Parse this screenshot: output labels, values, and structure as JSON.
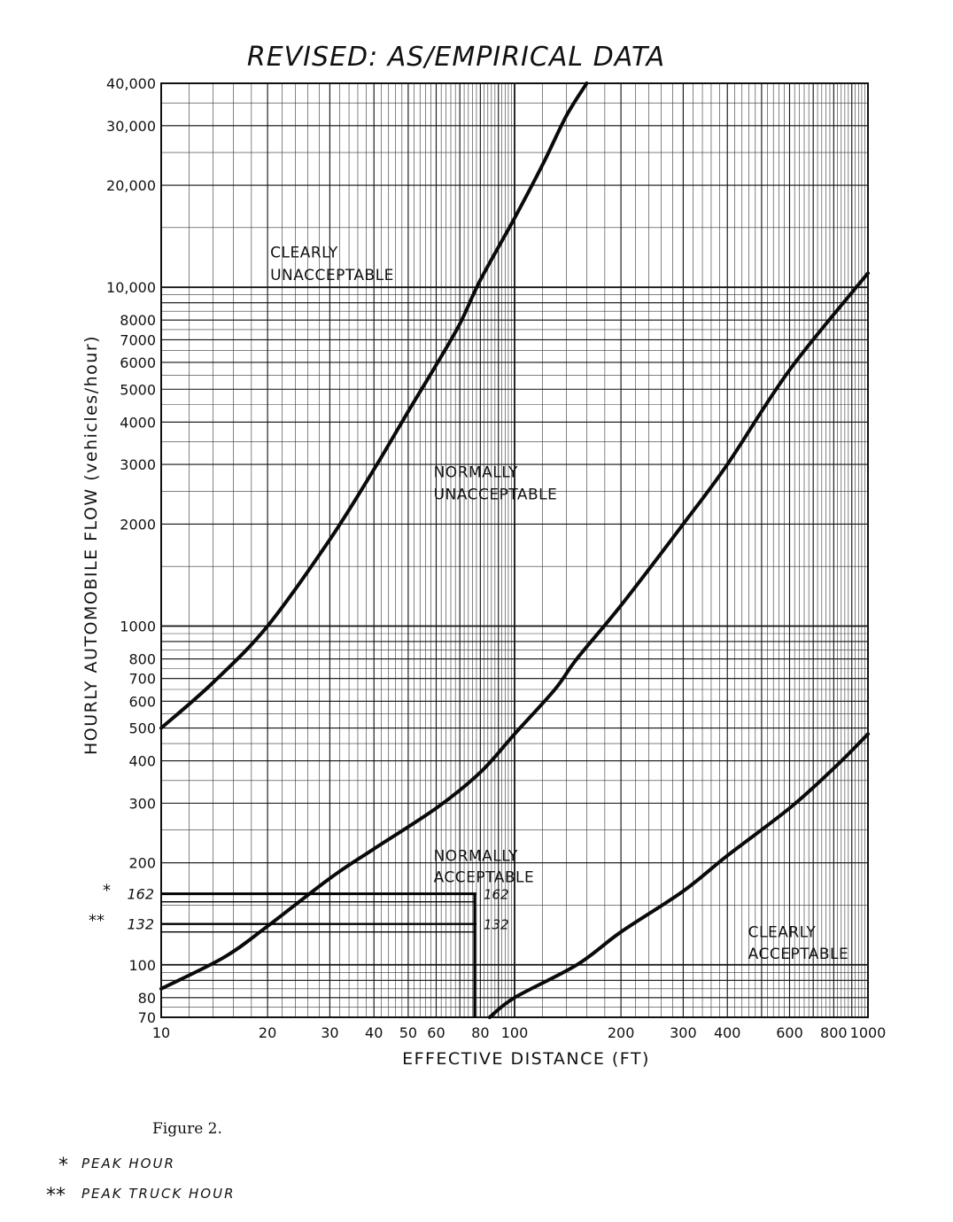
{
  "annotation_title": "REVISED: AS/EMPIRICAL DATA",
  "figure_caption": "Figure 2.",
  "footnotes": [
    {
      "marker": "*",
      "text": "PEAK HOUR"
    },
    {
      "marker": "**",
      "text": "PEAK TRUCK HOUR"
    }
  ],
  "chart_data": {
    "type": "line",
    "xscale": "log",
    "yscale": "log",
    "xlabel": "EFFECTIVE DISTANCE (FT)",
    "ylabel": "HOURLY AUTOMOBILE FLOW (vehicles/hour)",
    "xlim": [
      10,
      1000
    ],
    "ylim": [
      70,
      40000
    ],
    "grid": true,
    "x_ticks": [
      {
        "value": 10,
        "label": "10"
      },
      {
        "value": 20,
        "label": "20"
      },
      {
        "value": 30,
        "label": "30"
      },
      {
        "value": 40,
        "label": "40"
      },
      {
        "value": 50,
        "label": "50"
      },
      {
        "value": 60,
        "label": "60"
      },
      {
        "value": 80,
        "label": "80"
      },
      {
        "value": 100,
        "label": "100"
      },
      {
        "value": 200,
        "label": "200"
      },
      {
        "value": 300,
        "label": "300"
      },
      {
        "value": 400,
        "label": "400"
      },
      {
        "value": 600,
        "label": "600"
      },
      {
        "value": 800,
        "label": "800"
      },
      {
        "value": 1000,
        "label": "1000"
      }
    ],
    "y_ticks": [
      {
        "value": 70,
        "label": "70"
      },
      {
        "value": 80,
        "label": "80"
      },
      {
        "value": 100,
        "label": "100"
      },
      {
        "value": 200,
        "label": "200"
      },
      {
        "value": 300,
        "label": "300"
      },
      {
        "value": 400,
        "label": "400"
      },
      {
        "value": 500,
        "label": "500"
      },
      {
        "value": 600,
        "label": "600"
      },
      {
        "value": 700,
        "label": "700"
      },
      {
        "value": 800,
        "label": "800"
      },
      {
        "value": 1000,
        "label": "1000"
      },
      {
        "value": 2000,
        "label": "2000"
      },
      {
        "value": 3000,
        "label": "3000"
      },
      {
        "value": 4000,
        "label": "4000"
      },
      {
        "value": 5000,
        "label": "5000"
      },
      {
        "value": 6000,
        "label": "6000"
      },
      {
        "value": 7000,
        "label": "7000"
      },
      {
        "value": 8000,
        "label": "8000"
      },
      {
        "value": 10000,
        "label": "10,000"
      },
      {
        "value": 20000,
        "label": "20,000"
      },
      {
        "value": 30000,
        "label": "30,000"
      },
      {
        "value": 40000,
        "label": "40,000"
      }
    ],
    "series": [
      {
        "x": [
          10,
          14,
          20,
          30,
          40,
          50,
          60,
          70,
          80,
          100,
          120,
          140,
          160
        ],
        "y": [
          500,
          680,
          1000,
          1800,
          2900,
          4300,
          5900,
          7800,
          10500,
          16000,
          23000,
          32000,
          40000
        ]
      },
      {
        "x": [
          10,
          15,
          20,
          30,
          40,
          60,
          80,
          100,
          130,
          150,
          200,
          300,
          400,
          600,
          1000
        ],
        "y": [
          85,
          105,
          130,
          180,
          220,
          290,
          370,
          480,
          650,
          800,
          1150,
          2000,
          3000,
          5700,
          11000
        ]
      },
      {
        "x": [
          85,
          100,
          150,
          200,
          300,
          400,
          600,
          800,
          1000
        ],
        "y": [
          70,
          80,
          100,
          125,
          165,
          210,
          290,
          380,
          480
        ]
      }
    ],
    "annotations": [
      {
        "text": "CLEARLY",
        "x": 20,
        "y": 12700
      },
      {
        "text": "UNACCEPTABLE",
        "x": 20,
        "y": 10900
      },
      {
        "text": "NORMALLY",
        "x": 58,
        "y": 2850
      },
      {
        "text": "UNACCEPTABLE",
        "x": 58,
        "y": 2450
      },
      {
        "text": "NORMALLY",
        "x": 58,
        "y": 210
      },
      {
        "text": "ACCEPTABLE",
        "x": 58,
        "y": 182
      },
      {
        "text": "CLEARLY",
        "x": 450,
        "y": 125
      },
      {
        "text": "ACCEPTABLE",
        "x": 450,
        "y": 108
      }
    ],
    "reference_lines": [
      {
        "y": 162,
        "x_end": 78,
        "label": "162",
        "outer_label": "162",
        "marker": "*"
      },
      {
        "y": 132,
        "x_end": 78,
        "label": "132",
        "outer_label": "132",
        "marker": "**"
      }
    ]
  }
}
